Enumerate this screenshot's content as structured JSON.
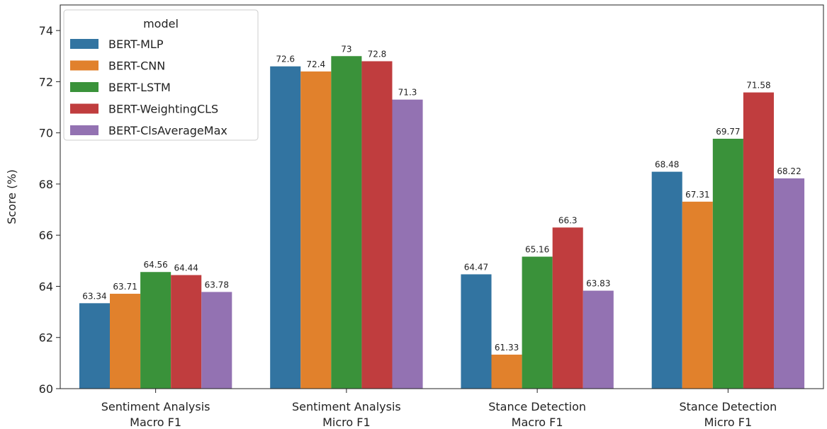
{
  "chart_data": {
    "type": "bar",
    "categories": [
      [
        "Sentiment Analysis",
        "Macro F1"
      ],
      [
        "Sentiment Analysis",
        "Micro F1"
      ],
      [
        "Stance Detection",
        "Macro F1"
      ],
      [
        "Stance Detection",
        "Micro F1"
      ]
    ],
    "series": [
      {
        "name": "BERT-MLP",
        "color": "#3274a1",
        "values": [
          63.34,
          72.6,
          64.47,
          68.48
        ],
        "labels": [
          "63.34",
          "72.6",
          "64.47",
          "68.48"
        ]
      },
      {
        "name": "BERT-CNN",
        "color": "#e1812c",
        "values": [
          63.71,
          72.4,
          61.33,
          67.31
        ],
        "labels": [
          "63.71",
          "72.4",
          "61.33",
          "67.31"
        ]
      },
      {
        "name": "BERT-LSTM",
        "color": "#3a923a",
        "values": [
          64.56,
          73,
          65.16,
          69.77
        ],
        "labels": [
          "64.56",
          "73",
          "65.16",
          "69.77"
        ]
      },
      {
        "name": "BERT-WeightingCLS",
        "color": "#c03d3e",
        "values": [
          64.44,
          72.8,
          66.3,
          71.58
        ],
        "labels": [
          "64.44",
          "72.8",
          "66.3",
          "71.58"
        ]
      },
      {
        "name": "BERT-ClsAverageMax",
        "color": "#9372b2",
        "values": [
          63.78,
          71.3,
          63.83,
          68.22
        ],
        "labels": [
          "63.78",
          "71.3",
          "63.83",
          "68.22"
        ]
      }
    ],
    "ylabel": "Score (%)",
    "xlabel": "",
    "ylim": [
      60,
      75
    ],
    "yticks": [
      60,
      62,
      64,
      66,
      68,
      70,
      72,
      74
    ],
    "legend": {
      "title": "model",
      "position": "top-left"
    },
    "grid": false
  }
}
